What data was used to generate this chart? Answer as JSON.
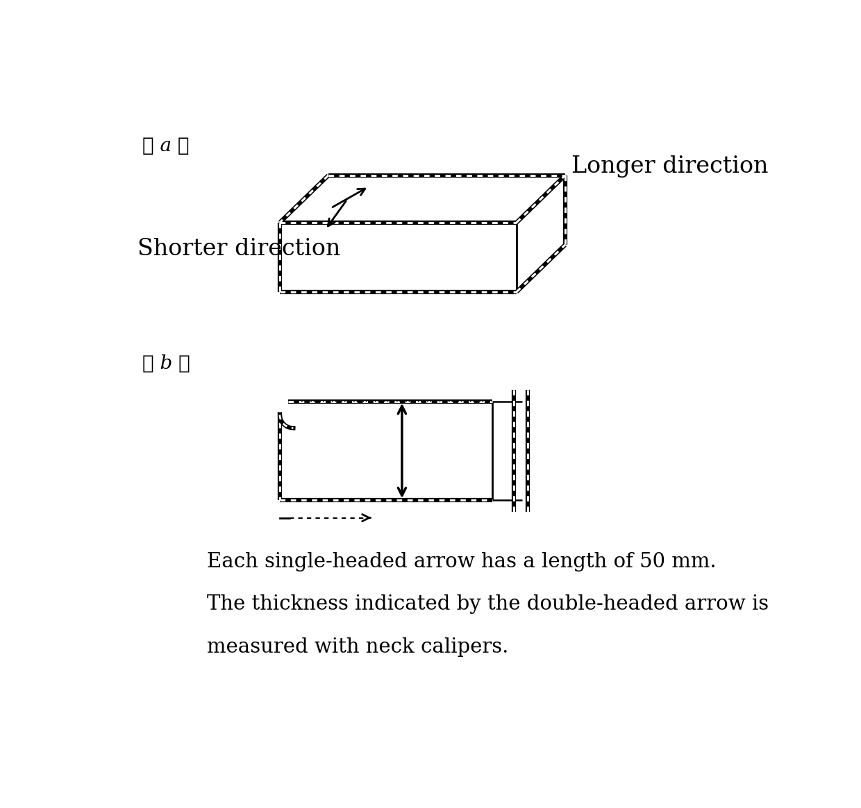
{
  "background_color": "#ffffff",
  "label_a": "〈 a 〉",
  "label_b": "〈 b 〉",
  "longer_direction": "Longer direction",
  "shorter_direction": "Shorter direction",
  "text1": "Each single-headed arrow has a length of 50 mm.",
  "text2": "The thickness indicated by the double-headed arrow is",
  "text3": "measured with neck calipers.",
  "font_size_label": 20,
  "font_size_direction": 24,
  "font_size_text": 21
}
